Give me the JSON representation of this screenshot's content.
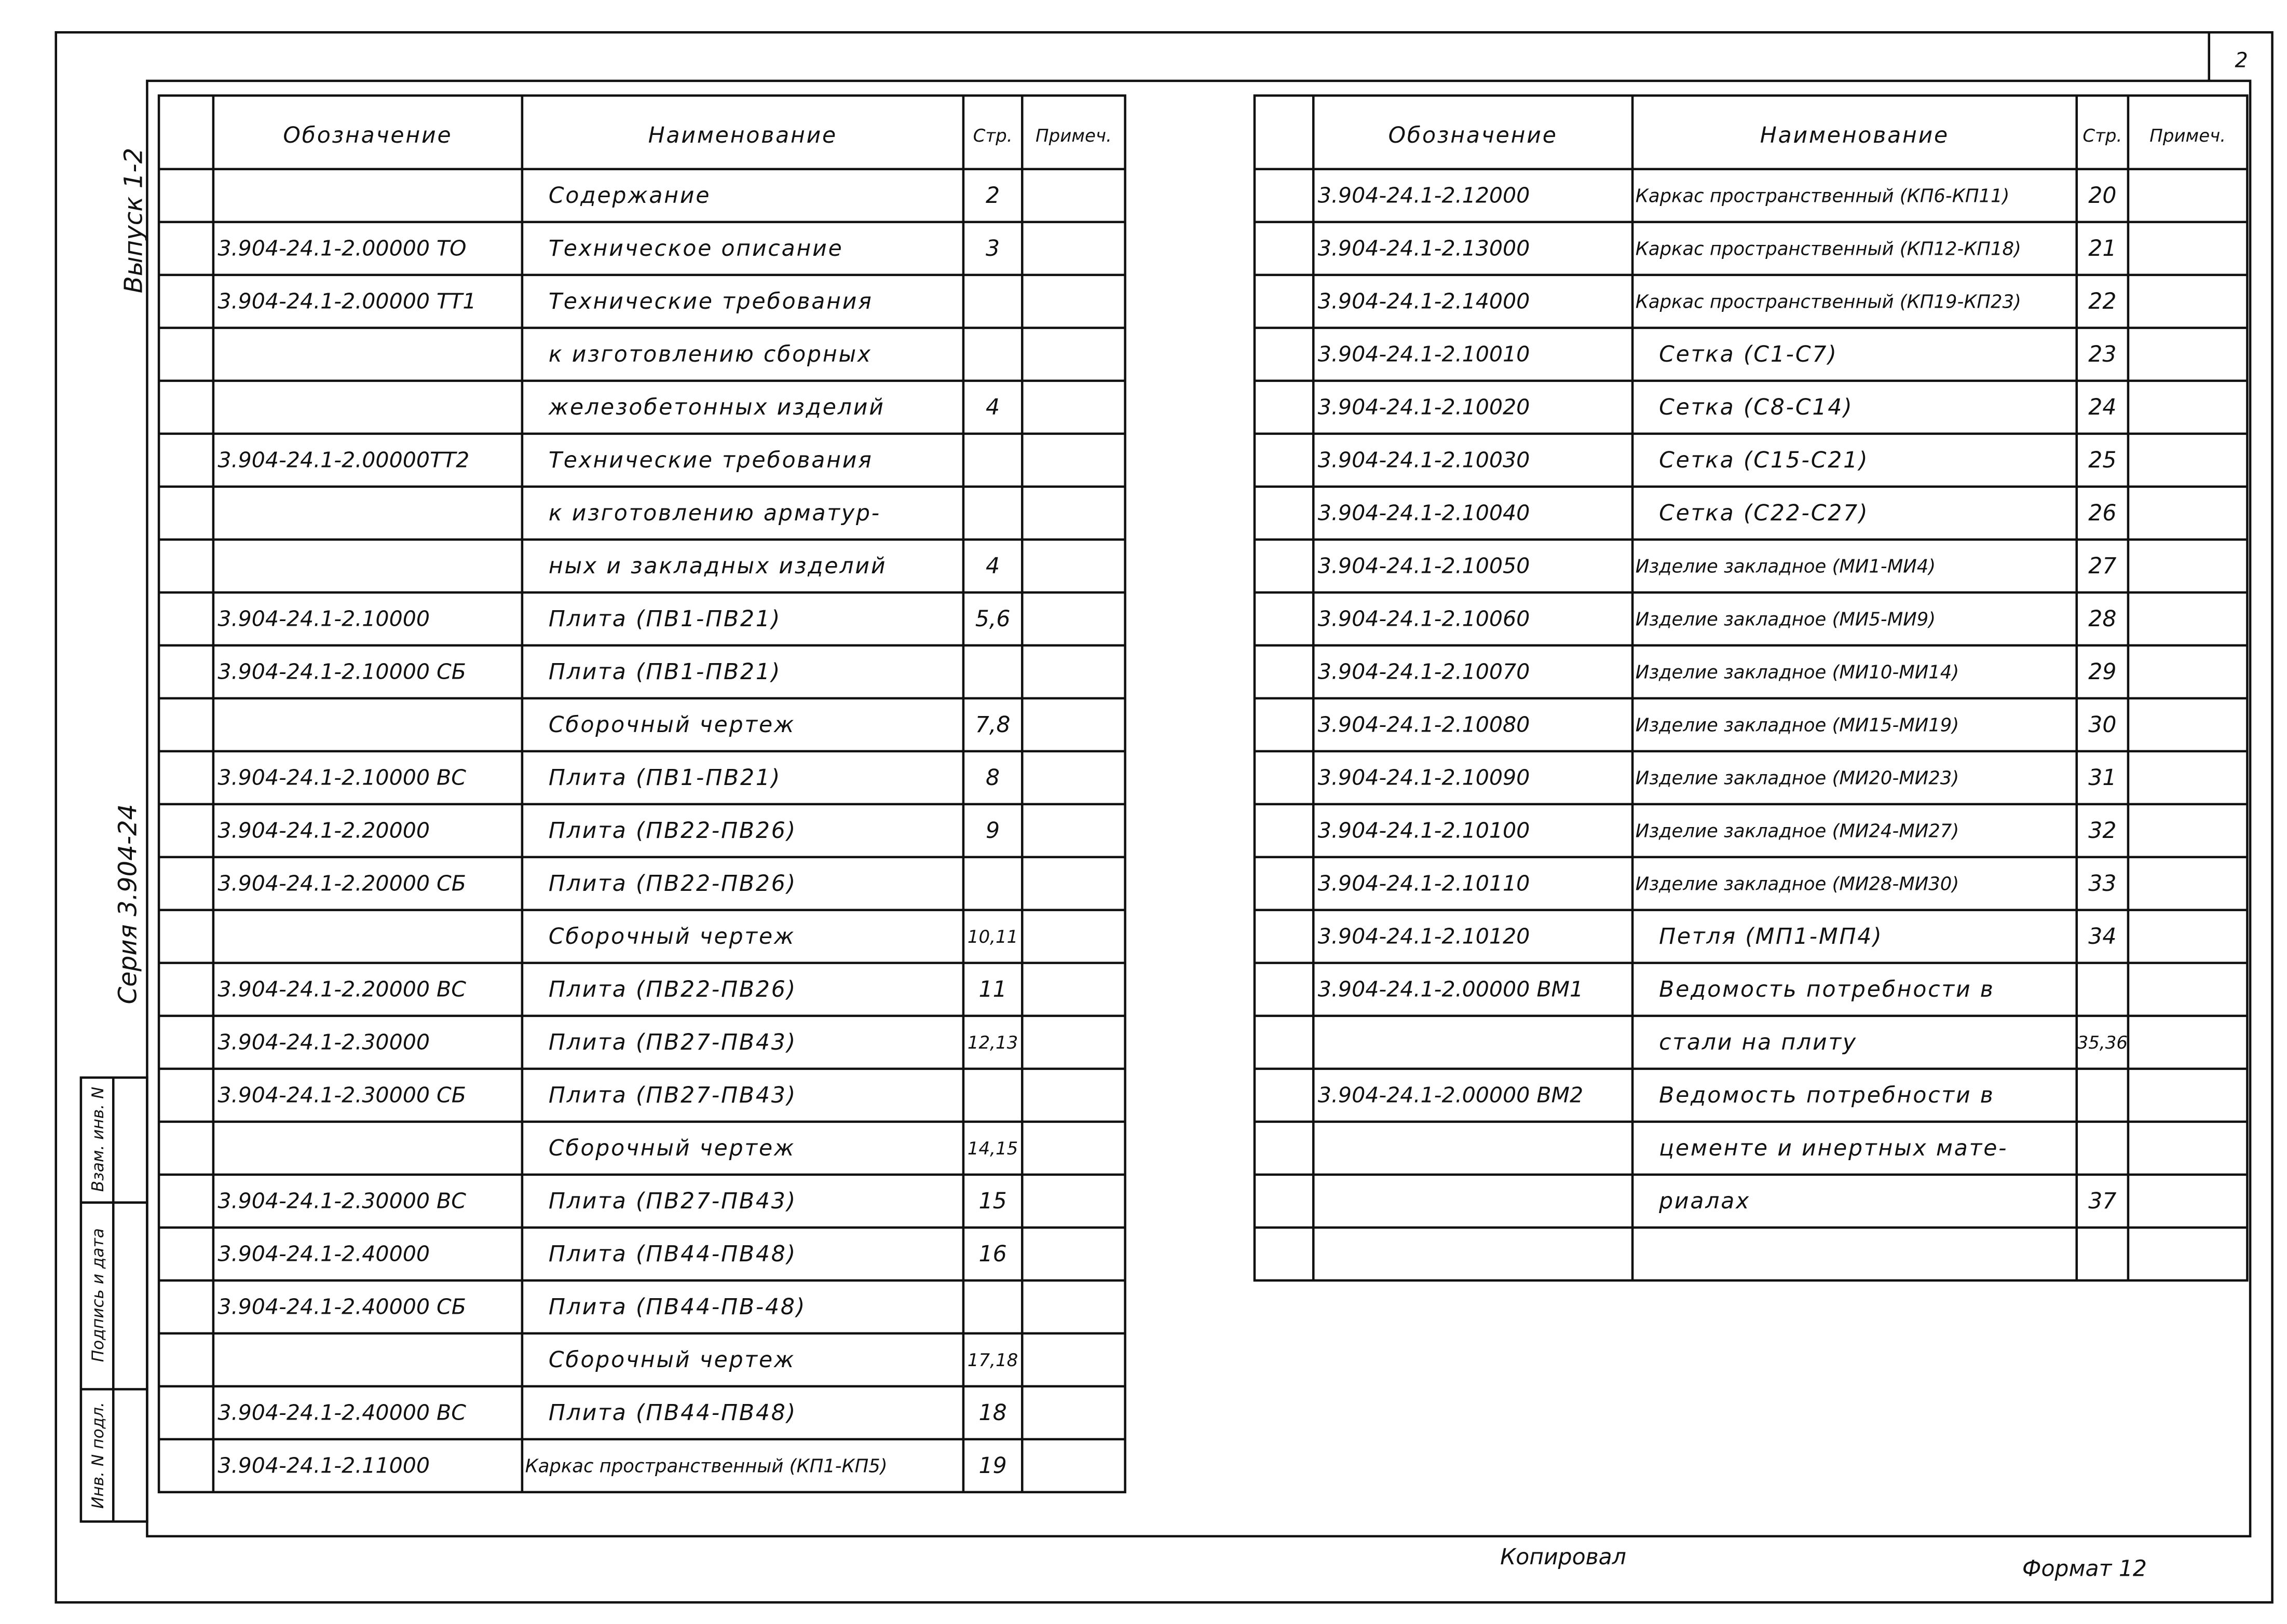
{
  "sheet_number": "2",
  "side": {
    "issue": "Выпуск 1-2",
    "series": "Серия 3.904-24",
    "stamp": [
      "Взам. инв. N",
      "Подпись и дата",
      "Инв. N подл."
    ]
  },
  "left_table": {
    "header": [
      "Обозначение",
      "Наименование",
      "Стр.",
      "Примеч."
    ],
    "rows": [
      {
        "name": "Содержание",
        "page": "2"
      },
      {
        "code": "3.904-24.1-2.00000 ТО",
        "name": "Техническое описание",
        "page": "3"
      },
      {
        "code": "3.904-24.1-2.00000 ТТ1",
        "name": "Технические требования"
      },
      {
        "name": "к изготовлению сборных"
      },
      {
        "name": "железобетонных изделий",
        "page": "4"
      },
      {
        "code": "3.904-24.1-2.00000ТТ2",
        "name": "Технические требования"
      },
      {
        "name": "к изготовлению арматур-"
      },
      {
        "name": "ных и закладных изделий",
        "page": "4"
      },
      {
        "code": "3.904-24.1-2.10000",
        "name": "Плита (ПВ1-ПВ21)",
        "page": "5,6"
      },
      {
        "code": "3.904-24.1-2.10000 СБ",
        "name": "Плита (ПВ1-ПВ21)"
      },
      {
        "name": "Сборочный чертеж",
        "page": "7,8"
      },
      {
        "code": "3.904-24.1-2.10000 ВС",
        "name": "Плита (ПВ1-ПВ21)",
        "page": "8"
      },
      {
        "code": "3.904-24.1-2.20000",
        "name": "Плита (ПВ22-ПВ26)",
        "page": "9"
      },
      {
        "code": "3.904-24.1-2.20000 СБ",
        "name": "Плита (ПВ22-ПВ26)"
      },
      {
        "name": "Сборочный чертеж",
        "page": "10,11"
      },
      {
        "code": "3.904-24.1-2.20000 ВС",
        "name": "Плита (ПВ22-ПВ26)",
        "page": "11"
      },
      {
        "code": "3.904-24.1-2.30000",
        "name": "Плита (ПВ27-ПВ43)",
        "page": "12,13"
      },
      {
        "code": "3.904-24.1-2.30000 СБ",
        "name": "Плита (ПВ27-ПВ43)"
      },
      {
        "name": "Сборочный чертеж",
        "page": "14,15"
      },
      {
        "code": "3.904-24.1-2.30000 ВС",
        "name": "Плита (ПВ27-ПВ43)",
        "page": "15"
      },
      {
        "code": "3.904-24.1-2.40000",
        "name": "Плита (ПВ44-ПВ48)",
        "page": "16"
      },
      {
        "code": "3.904-24.1-2.40000 СБ",
        "name": "Плита (ПВ44-ПВ-48)"
      },
      {
        "name": "Сборочный чертеж",
        "page": "17,18"
      },
      {
        "code": "3.904-24.1-2.40000 ВС",
        "name": "Плита (ПВ44-ПВ48)",
        "page": "18"
      },
      {
        "code": "3.904-24.1-2.11000",
        "name": "Каркас пространственный (КП1-КП5)",
        "page": "19"
      }
    ]
  },
  "right_table": {
    "header": [
      "Обозначение",
      "Наименование",
      "Стр.",
      "Примеч."
    ],
    "rows": [
      {
        "code": "3.904-24.1-2.12000",
        "name": "Каркас пространственный (КП6-КП11)",
        "page": "20"
      },
      {
        "code": "3.904-24.1-2.13000",
        "name": "Каркас пространственный (КП12-КП18)",
        "page": "21"
      },
      {
        "code": "3.904-24.1-2.14000",
        "name": "Каркас пространственный (КП19-КП23)",
        "page": "22"
      },
      {
        "code": "3.904-24.1-2.10010",
        "name": "Сетка (С1-С7)",
        "page": "23"
      },
      {
        "code": "3.904-24.1-2.10020",
        "name": "Сетка (С8-С14)",
        "page": "24"
      },
      {
        "code": "3.904-24.1-2.10030",
        "name": "Сетка (С15-С21)",
        "page": "25"
      },
      {
        "code": "3.904-24.1-2.10040",
        "name": "Сетка (С22-С27)",
        "page": "26"
      },
      {
        "code": "3.904-24.1-2.10050",
        "name": "Изделие закладное (МИ1-МИ4)",
        "page": "27"
      },
      {
        "code": "3.904-24.1-2.10060",
        "name": "Изделие закладное (МИ5-МИ9)",
        "page": "28"
      },
      {
        "code": "3.904-24.1-2.10070",
        "name": "Изделие закладное (МИ10-МИ14)",
        "page": "29"
      },
      {
        "code": "3.904-24.1-2.10080",
        "name": "Изделие закладное (МИ15-МИ19)",
        "page": "30"
      },
      {
        "code": "3.904-24.1-2.10090",
        "name": "Изделие закладное (МИ20-МИ23)",
        "page": "31"
      },
      {
        "code": "3.904-24.1-2.10100",
        "name": "Изделие закладное (МИ24-МИ27)",
        "page": "32"
      },
      {
        "code": "3.904-24.1-2.10110",
        "name": "Изделие закладное (МИ28-МИ30)",
        "page": "33"
      },
      {
        "code": "3.904-24.1-2.10120",
        "name": "Петля (МП1-МП4)",
        "page": "34"
      },
      {
        "code": "3.904-24.1-2.00000 ВМ1",
        "name": "Ведомость потребности в"
      },
      {
        "name": "стали на плиту",
        "page": "35,36"
      },
      {
        "code": "3.904-24.1-2.00000 ВМ2",
        "name": "Ведомость потребности в"
      },
      {
        "name": "цементе и инертных мате-"
      },
      {
        "name": "риалах",
        "page": "37"
      }
    ]
  },
  "footer": {
    "copied": "Копировал",
    "format": "Формат 12"
  }
}
